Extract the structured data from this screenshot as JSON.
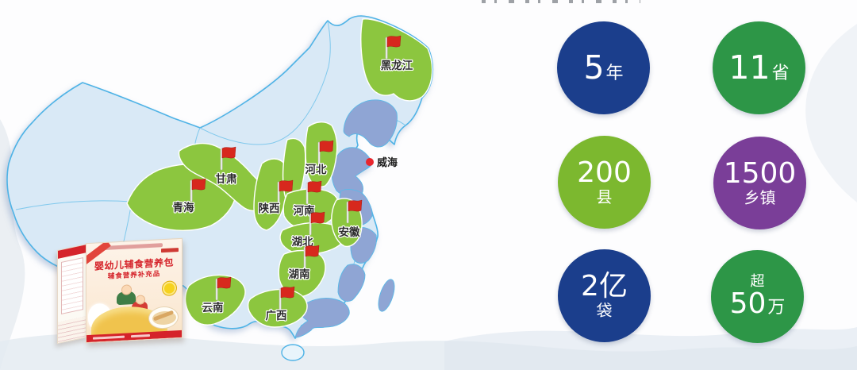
{
  "map": {
    "colors": {
      "highlight_green": "#8cc63f",
      "coastal_blue": "#8fa5d4",
      "base_blue": "#d9e9f6",
      "island_light": "#e8f4fb",
      "border_cyan": "#4fb3e6",
      "flag_red": "#d7281d"
    },
    "markers": [
      {
        "name": "黑龙江",
        "flag": [
          487,
          74
        ],
        "label": [
          500,
          87
        ]
      },
      {
        "name": "甘肃",
        "flag": [
          279,
          214
        ],
        "label": [
          285,
          230
        ]
      },
      {
        "name": "青海",
        "flag": [
          241,
          254
        ],
        "label": [
          231,
          266
        ]
      },
      {
        "name": "陕西",
        "flag": [
          351,
          256
        ],
        "label": [
          339,
          267
        ]
      },
      {
        "name": "河北",
        "flag": [
          402,
          206
        ],
        "label": [
          398,
          218
        ]
      },
      {
        "name": "河南",
        "flag": [
          387,
          257
        ],
        "label": [
          383,
          270
        ]
      },
      {
        "name": "湖北",
        "flag": [
          391,
          296
        ],
        "label": [
          381,
          309
        ]
      },
      {
        "name": "安徽",
        "flag": [
          438,
          281
        ],
        "label": [
          440,
          297
        ]
      },
      {
        "name": "湖南",
        "flag": [
          384,
          338
        ],
        "label": [
          377,
          350
        ]
      },
      {
        "name": "云南",
        "flag": [
          273,
          378
        ],
        "label": [
          268,
          392
        ]
      },
      {
        "name": "广西",
        "flag": [
          353,
          390
        ],
        "label": [
          348,
          402
        ]
      }
    ],
    "city": {
      "name": "威海",
      "dot": [
        466,
        204
      ],
      "label": [
        475,
        209
      ],
      "dot_color": "#e8262d"
    }
  },
  "product": {
    "title": "婴幼儿辅食营养包",
    "subtitle": "辅食营养补充品"
  },
  "stats": [
    {
      "id": "years",
      "layout": "inline",
      "number": "5",
      "unit": "年",
      "color": "#1b3e8c"
    },
    {
      "id": "provinces",
      "layout": "inline",
      "number": "11",
      "unit": "省",
      "color": "#2d9647"
    },
    {
      "id": "counties",
      "layout": "stacked",
      "number": "200",
      "unit": "县",
      "color": "#7cb82f"
    },
    {
      "id": "townships",
      "layout": "stacked",
      "number": "1500",
      "unit": "乡镇",
      "color": "#7a3e98"
    },
    {
      "id": "bags",
      "layout": "stacked",
      "number": "2亿",
      "unit": "袋",
      "color": "#1b3e8c"
    },
    {
      "id": "beneficiaries",
      "layout": "prefixed",
      "prefix": "超",
      "number": "50",
      "unit": "万",
      "color": "#2d9647"
    }
  ]
}
